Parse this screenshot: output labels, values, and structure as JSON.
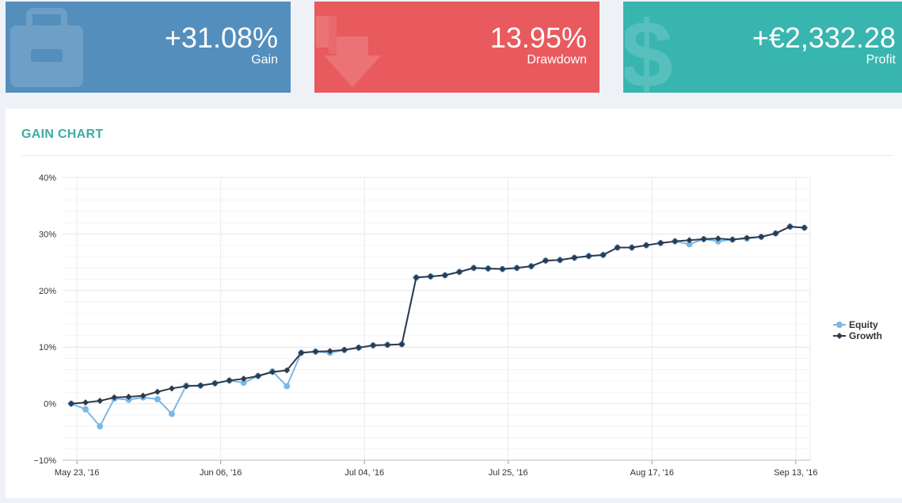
{
  "stats": {
    "gain": {
      "value": "+31.08%",
      "label": "Gain",
      "icon": "briefcase-icon"
    },
    "drawdown": {
      "value": "13.95%",
      "label": "Drawdown",
      "icon": "arrow-down-icon"
    },
    "profit": {
      "value": "+€2,332.28",
      "label": "Profit",
      "icon": "dollar-icon"
    }
  },
  "colors": {
    "gain_card": "#548ebc",
    "drawdown_card": "#e85a5d",
    "profit_card": "#39b5b0",
    "title": "#3dada4",
    "equity": "#7ab8e6",
    "growth": "#2f3a4a"
  },
  "panel": {
    "title": "GAIN CHART"
  },
  "chart_data": {
    "type": "line",
    "title": "GAIN CHART",
    "xlabel": "",
    "ylabel": "",
    "ylim": [
      -10,
      40
    ],
    "yticks": [
      -10,
      0,
      10,
      20,
      30,
      40
    ],
    "ytick_labels": [
      "−10%",
      "0%",
      "10%",
      "20%",
      "30%",
      "40%"
    ],
    "x_tick_labels": [
      "May 23, '16",
      "Jun 06, '16",
      "Jul 04, '16",
      "Jul 25, '16",
      "Aug 17, '16",
      "Sep 13, '16"
    ],
    "x_tick_positions": [
      0,
      10,
      20,
      30,
      40,
      50
    ],
    "grid": true,
    "legend": "right",
    "series": [
      {
        "name": "Equity",
        "x": [
          -0.4,
          0.6,
          1.6,
          2.6,
          3.6,
          4.6,
          5.6,
          6.6,
          7.6,
          8.6,
          9.6,
          10.6,
          11.6,
          12.6,
          13.6,
          14.6,
          15.6,
          16.6,
          17.6,
          18.6,
          19.6,
          20.6,
          21.6,
          22.6,
          23.6,
          24.6,
          25.6,
          26.6,
          27.6,
          28.6,
          29.6,
          30.6,
          31.6,
          32.6,
          33.6,
          34.6,
          35.6,
          36.6,
          37.6,
          38.6,
          39.6,
          40.6,
          41.6,
          42.6,
          43.6,
          44.6,
          45.6,
          46.6,
          47.6,
          48.6,
          49.6,
          50.6
        ],
        "values": [
          0,
          -1,
          -4,
          0.9,
          0.7,
          1.1,
          0.8,
          -1.8,
          3.2,
          3.2,
          3.6,
          4.1,
          3.7,
          4.9,
          5.7,
          3.1,
          9.0,
          9.2,
          9.0,
          9.5,
          9.9,
          10.3,
          10.4,
          10.5,
          22.3,
          22.5,
          22.7,
          23.3,
          24.0,
          23.9,
          23.8,
          24.0,
          24.3,
          25.3,
          25.4,
          25.8,
          26.1,
          26.3,
          27.6,
          27.6,
          28.0,
          28.4,
          28.7,
          28.2,
          29.1,
          28.7,
          29.0,
          29.2,
          29.5,
          30.1,
          31.3,
          31.1
        ]
      },
      {
        "name": "Growth",
        "x": [
          -0.4,
          0.6,
          1.6,
          2.6,
          3.6,
          4.6,
          5.6,
          6.6,
          7.6,
          8.6,
          9.6,
          10.6,
          11.6,
          12.6,
          13.6,
          14.6,
          15.6,
          16.6,
          17.6,
          18.6,
          19.6,
          20.6,
          21.6,
          22.6,
          23.6,
          24.6,
          25.6,
          26.6,
          27.6,
          28.6,
          29.6,
          30.6,
          31.6,
          32.6,
          33.6,
          34.6,
          35.6,
          36.6,
          37.6,
          38.6,
          39.6,
          40.6,
          41.6,
          42.6,
          43.6,
          44.6,
          45.6,
          46.6,
          47.6,
          48.6,
          49.6,
          50.6
        ],
        "values": [
          0,
          0.2,
          0.5,
          1.1,
          1.2,
          1.4,
          2.1,
          2.7,
          3.1,
          3.2,
          3.6,
          4.1,
          4.4,
          4.9,
          5.6,
          5.9,
          9.0,
          9.2,
          9.3,
          9.5,
          9.9,
          10.3,
          10.4,
          10.5,
          22.3,
          22.5,
          22.7,
          23.3,
          24.0,
          23.9,
          23.8,
          24.0,
          24.3,
          25.3,
          25.4,
          25.8,
          26.1,
          26.3,
          27.6,
          27.6,
          28.0,
          28.4,
          28.7,
          28.9,
          29.1,
          29.2,
          29.0,
          29.3,
          29.5,
          30.1,
          31.3,
          31.1
        ]
      }
    ]
  }
}
